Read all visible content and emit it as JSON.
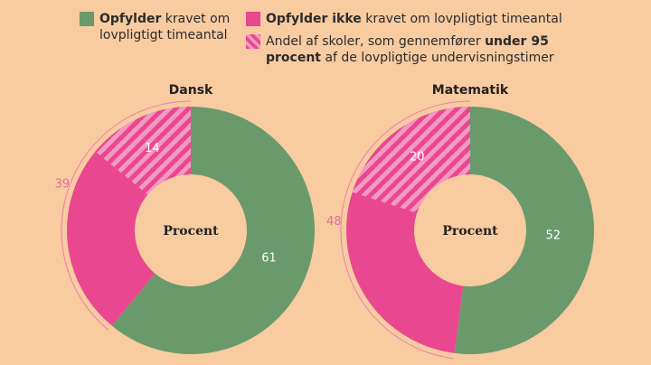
{
  "legend": [
    {
      "parts": [
        {
          "text": "Opfylder",
          "bold": true
        },
        {
          "text": " kravet om lovpligtigt timeantal"
        }
      ],
      "color": "#6a9a6b"
    },
    {
      "parts": [
        {
          "text": "Opfylder ikke",
          "bold": true
        },
        {
          "text": " kravet om lovpligtigt timeantal"
        }
      ],
      "color": "#e9478f"
    },
    {
      "parts": [
        {
          "text": "Andel af skoler, som gennemfører "
        },
        {
          "text": "under 95 procent",
          "bold": true
        },
        {
          "text": " af de lovpligtige undervisningstimer"
        }
      ],
      "color": "#e9478f",
      "hatched": true
    }
  ],
  "chart_data": [
    {
      "type": "pie",
      "title": "Dansk",
      "center_label": "Procent",
      "values": [
        61,
        39,
        14
      ]
    },
    {
      "type": "pie",
      "title": "Matematik",
      "center_label": "Procent",
      "values": [
        52,
        48,
        20
      ]
    }
  ]
}
